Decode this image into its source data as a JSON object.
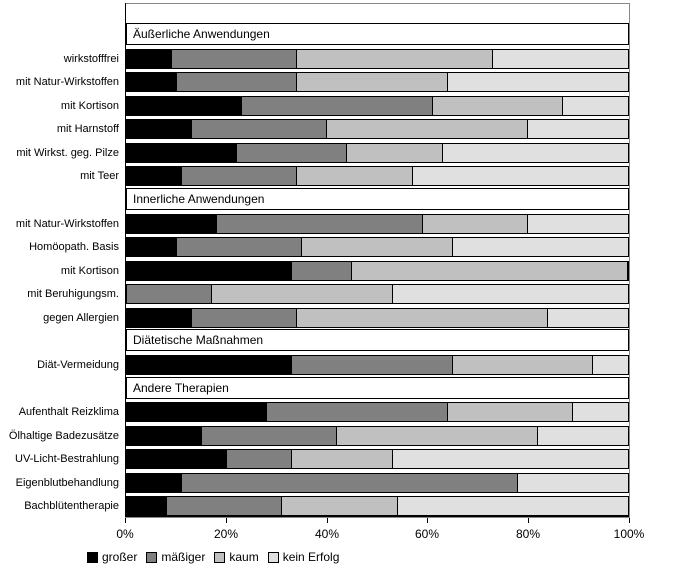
{
  "chart_data": {
    "type": "bar",
    "stacked": true,
    "orientation": "horizontal",
    "title": "",
    "xlabel": "",
    "ylabel": "",
    "xlim": [
      0,
      100
    ],
    "grid": false,
    "legend_position": "bottom",
    "x_tick_labels": [
      "0%",
      "20%",
      "40%",
      "60%",
      "80%",
      "100%"
    ],
    "series_names": [
      "großer",
      "mäßiger",
      "kaum",
      "kein Erfolg"
    ],
    "series_colors": [
      "#000000",
      "#808080",
      "#c0c0c0",
      "#e0e0e0"
    ],
    "groups": [
      {
        "header": "Äußerliche Anwendungen",
        "rows": [
          {
            "label": "wirkstofffrei",
            "values": [
              9,
              25,
              39,
              27
            ]
          },
          {
            "label": "mit Natur-Wirkstoffen",
            "values": [
              10,
              24,
              30,
              36
            ]
          },
          {
            "label": "mit Kortison",
            "values": [
              23,
              38,
              26,
              13
            ]
          },
          {
            "label": "mit Harnstoff",
            "values": [
              13,
              27,
              40,
              20
            ]
          },
          {
            "label": "mit Wirkst. geg. Pilze",
            "values": [
              22,
              22,
              19,
              37
            ]
          },
          {
            "label": "mit Teer",
            "values": [
              11,
              23,
              23,
              43
            ]
          }
        ]
      },
      {
        "header": "Innerliche Anwendungen",
        "rows": [
          {
            "label": "mit Natur-Wirkstoffen",
            "values": [
              18,
              41,
              21,
              20
            ]
          },
          {
            "label": "Homöopath. Basis",
            "values": [
              10,
              25,
              30,
              35
            ]
          },
          {
            "label": "mit Kortison",
            "values": [
              33,
              12,
              55,
              0
            ]
          },
          {
            "label": "mit Beruhigungsm.",
            "values": [
              0,
              17,
              36,
              47
            ]
          },
          {
            "label": "gegen Allergien",
            "values": [
              13,
              21,
              50,
              16
            ]
          }
        ]
      },
      {
        "header": "Diätetische Maßnahmen",
        "rows": [
          {
            "label": "Diät-Vermeidung",
            "values": [
              33,
              32,
              28,
              7
            ]
          }
        ]
      },
      {
        "header": "Andere Therapien",
        "rows": [
          {
            "label": "Aufenthalt Reizklima",
            "values": [
              28,
              36,
              25,
              11
            ]
          },
          {
            "label": "Ölhaltige Badezusätze",
            "values": [
              15,
              27,
              40,
              18
            ]
          },
          {
            "label": "UV-Licht-Bestrahlung",
            "values": [
              20,
              13,
              20,
              47
            ]
          },
          {
            "label": "Eigenblutbehandlung",
            "values": [
              11,
              67,
              0,
              22
            ]
          },
          {
            "label": "Bachblütentherapie",
            "values": [
              8,
              23,
              23,
              46
            ]
          }
        ]
      }
    ],
    "legend": [
      {
        "label": "großer",
        "color": "#000000"
      },
      {
        "label": "mäßiger",
        "color": "#808080"
      },
      {
        "label": "kaum",
        "color": "#c0c0c0"
      },
      {
        "label": "kein Erfolg",
        "color": "#e0e0e0"
      }
    ]
  }
}
